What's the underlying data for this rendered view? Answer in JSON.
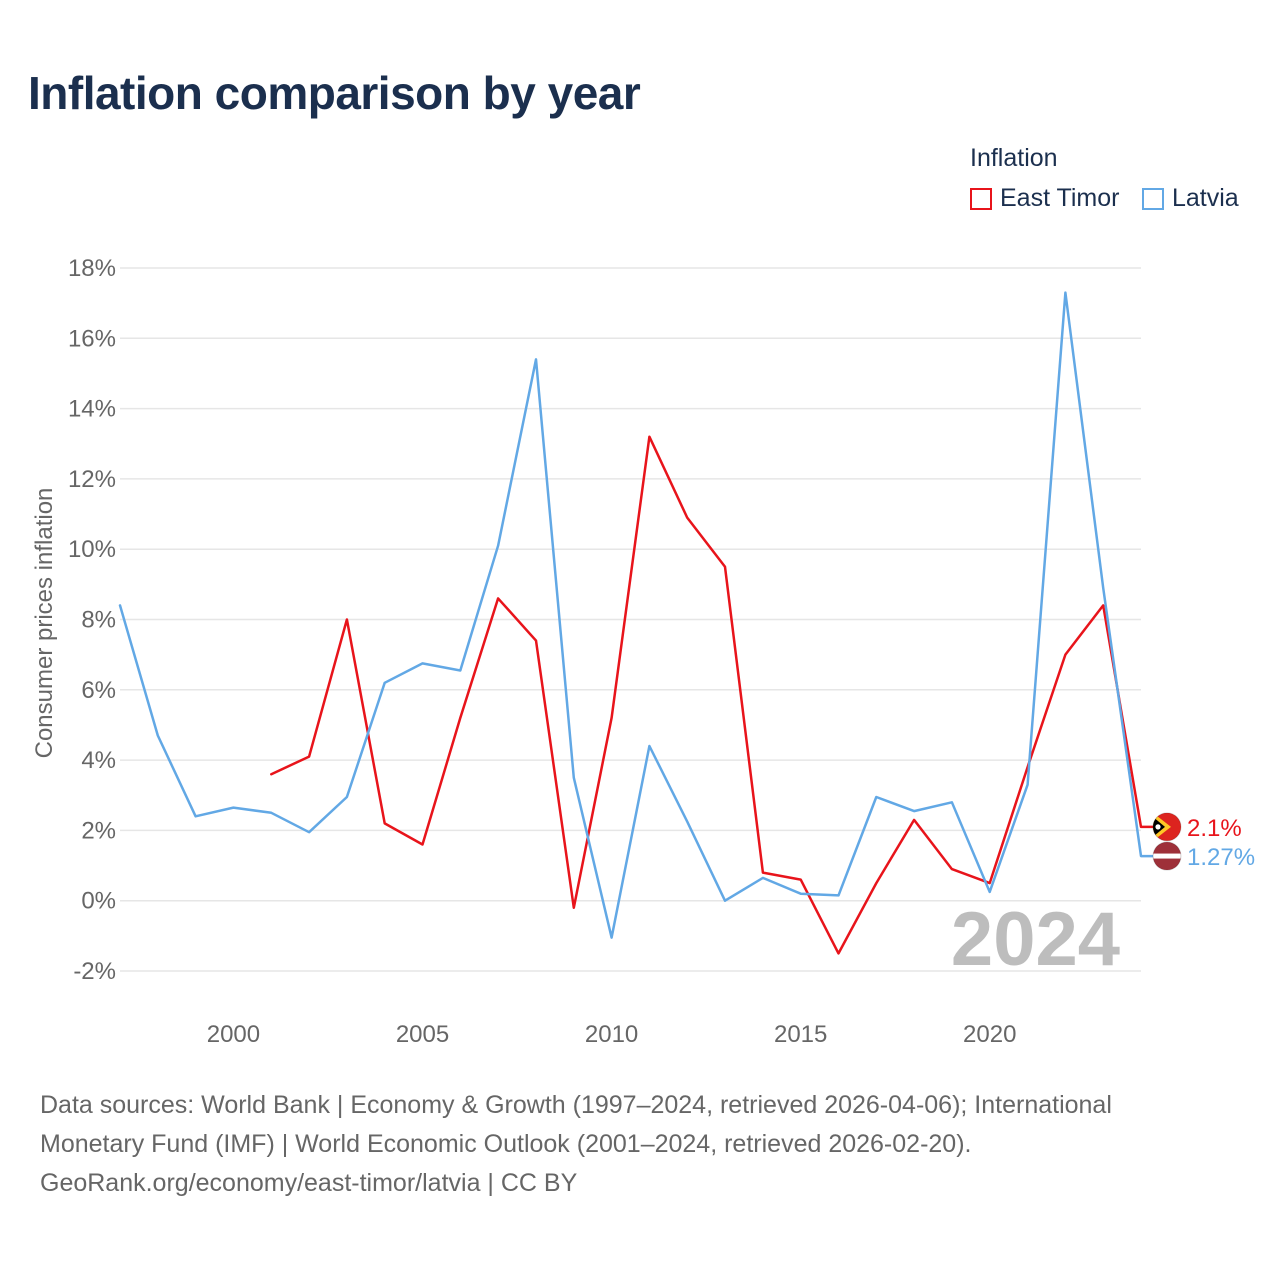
{
  "title": "Inflation comparison by year",
  "legend": {
    "title": "Inflation",
    "items": [
      {
        "label": "East Timor",
        "color": "#e8141b"
      },
      {
        "label": "Latvia",
        "color": "#62a8e5"
      }
    ]
  },
  "chart_data": {
    "type": "line",
    "ylabel": "Consumer prices inflation",
    "xlabel": "",
    "xlim": [
      1997,
      2024
    ],
    "ylim": [
      -2,
      18
    ],
    "x_ticks": [
      2000,
      2005,
      2010,
      2015,
      2020
    ],
    "y_ticks": [
      -2,
      0,
      2,
      4,
      6,
      8,
      10,
      12,
      14,
      16,
      18
    ],
    "y_tick_labels": [
      "-2%",
      "0%",
      "2%",
      "4%",
      "6%",
      "8%",
      "10%",
      "12%",
      "14%",
      "16%",
      "18%"
    ],
    "year_watermark": "2024",
    "grid": true,
    "legend_position": "top-right",
    "series": [
      {
        "name": "East Timor",
        "color": "#e8141b",
        "end_label": "2.1%",
        "flag": "east-timor",
        "points": [
          [
            2001,
            3.6
          ],
          [
            2002,
            4.1
          ],
          [
            2003,
            8.0
          ],
          [
            2004,
            2.2
          ],
          [
            2005,
            1.6
          ],
          [
            2006,
            5.2
          ],
          [
            2007,
            8.6
          ],
          [
            2008,
            7.4
          ],
          [
            2009,
            -0.2
          ],
          [
            2010,
            5.2
          ],
          [
            2011,
            13.2
          ],
          [
            2012,
            10.9
          ],
          [
            2013,
            9.5
          ],
          [
            2014,
            0.8
          ],
          [
            2015,
            0.6
          ],
          [
            2016,
            -1.5
          ],
          [
            2017,
            0.5
          ],
          [
            2018,
            2.3
          ],
          [
            2019,
            0.9
          ],
          [
            2020,
            0.5
          ],
          [
            2021,
            3.8
          ],
          [
            2022,
            7.0
          ],
          [
            2023,
            8.4
          ],
          [
            2024,
            2.1
          ]
        ]
      },
      {
        "name": "Latvia",
        "color": "#62a8e5",
        "end_label": "1.27%",
        "flag": "latvia",
        "points": [
          [
            1997,
            8.4
          ],
          [
            1998,
            4.7
          ],
          [
            1999,
            2.4
          ],
          [
            2000,
            2.65
          ],
          [
            2001,
            2.5
          ],
          [
            2002,
            1.95
          ],
          [
            2003,
            2.95
          ],
          [
            2004,
            6.2
          ],
          [
            2005,
            6.75
          ],
          [
            2006,
            6.55
          ],
          [
            2007,
            10.1
          ],
          [
            2008,
            15.4
          ],
          [
            2009,
            3.5
          ],
          [
            2010,
            -1.05
          ],
          [
            2011,
            4.4
          ],
          [
            2012,
            2.25
          ],
          [
            2013,
            0.0
          ],
          [
            2014,
            0.65
          ],
          [
            2015,
            0.2
          ],
          [
            2016,
            0.15
          ],
          [
            2017,
            2.95
          ],
          [
            2018,
            2.55
          ],
          [
            2019,
            2.8
          ],
          [
            2020,
            0.25
          ],
          [
            2021,
            3.3
          ],
          [
            2022,
            17.3
          ],
          [
            2023,
            8.9
          ],
          [
            2024,
            1.27
          ]
        ]
      }
    ]
  },
  "footer": {
    "line1": "Data sources: World Bank | Economy & Growth (1997–2024, retrieved 2026-04-06); International",
    "line2": "Monetary Fund (IMF) | World Economic Outlook (2001–2024, retrieved 2026-02-20).",
    "line3": "GeoRank.org/economy/east-timor/latvia | CC BY"
  }
}
